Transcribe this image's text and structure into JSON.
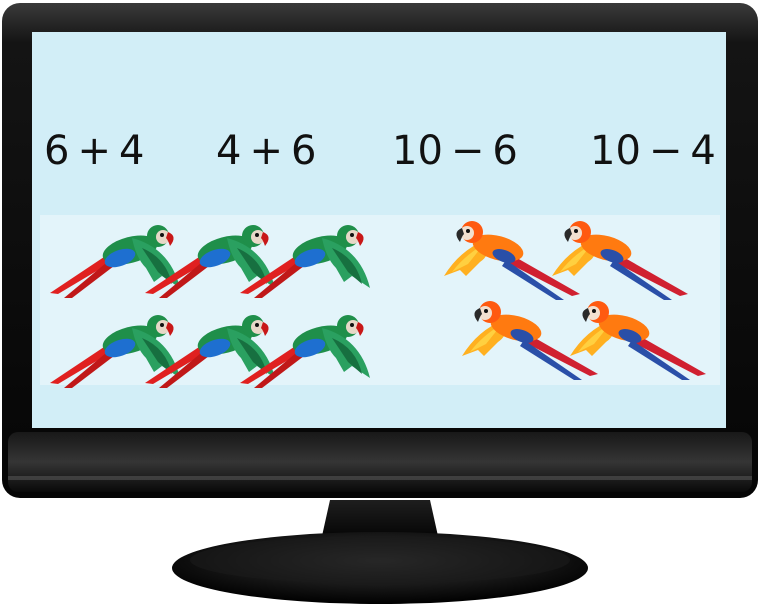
{
  "monitor": {
    "screen_color": "#d2eef7",
    "bezel_color": "#111111"
  },
  "expressions": [
    "6 + 4",
    "4 + 6",
    "10 − 6",
    "10 − 4"
  ],
  "birds": {
    "green_parrots": {
      "count": 6,
      "colors": {
        "body": "#1f8f4a",
        "wing": "#2aa060",
        "tail": "#e02020",
        "breast": "#1e6fd0"
      }
    },
    "orange_parrots": {
      "count": 4,
      "colors": {
        "body": "#ff7a10",
        "wing": "#ffb020",
        "tail": "#d02030",
        "breast": "#2a4fa8"
      }
    }
  }
}
